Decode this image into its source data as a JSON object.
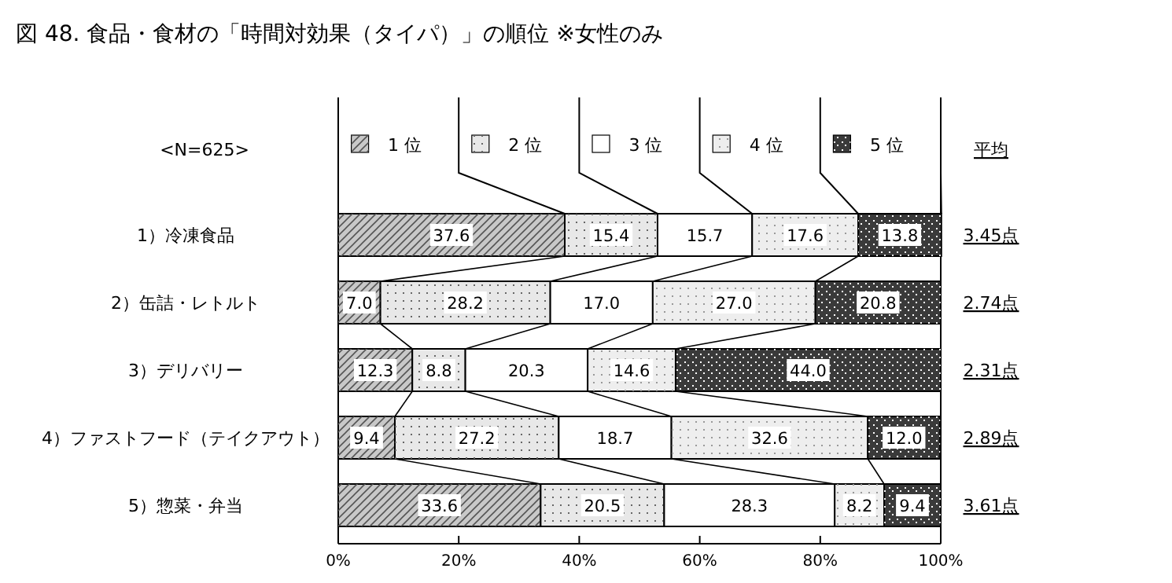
{
  "chart_data": {
    "type": "bar",
    "orientation": "horizontal",
    "stacked": true,
    "legend": "top",
    "title": "図 48. 食品・食材の「時間対効果（タイパ）」の順位 ※女性のみ",
    "categories": [
      "1）冷凍食品",
      "2）缶詰・レトルト",
      "3）デリバリー",
      "4）ファストフード（テイクアウト）",
      "5）惣菜・弁当"
    ],
    "series": [
      {
        "name": "1 位",
        "color": "#c8c8c8",
        "values": [
          37.6,
          7.0,
          12.3,
          9.4,
          33.6
        ],
        "value_labels": [
          "37.6",
          "7.0",
          "12.3",
          "9.4",
          "33.6"
        ]
      },
      {
        "name": "2 位",
        "color": "#e8e8e8",
        "values": [
          15.4,
          28.2,
          8.8,
          27.2,
          20.5
        ],
        "value_labels": [
          "15.4",
          "28.2",
          "8.8",
          "27.2",
          "20.5"
        ]
      },
      {
        "name": "3 位",
        "color": "#ffffff",
        "values": [
          15.7,
          17.0,
          20.3,
          18.7,
          28.3
        ],
        "value_labels": [
          "15.7",
          "17.0",
          "20.3",
          "18.7",
          "28.3"
        ]
      },
      {
        "name": "4 位",
        "color": "#eeeeee",
        "values": [
          17.6,
          27.0,
          14.6,
          32.6,
          8.2
        ],
        "value_labels": [
          "17.6",
          "27.0",
          "14.6",
          "32.6",
          "8.2"
        ]
      },
      {
        "name": "5 位",
        "color": "#3a3a3a",
        "values": [
          13.8,
          20.8,
          44.0,
          12.0,
          9.4
        ],
        "value_labels": [
          "13.8",
          "20.8",
          "44.0",
          "12.0",
          "9.4"
        ]
      }
    ],
    "xlim": [
      0,
      100
    ],
    "xticks": [
      {
        "value": 0,
        "label": "0%"
      },
      {
        "value": 20,
        "label": "20%"
      },
      {
        "value": 40,
        "label": "40%"
      },
      {
        "value": 60,
        "label": "60%"
      },
      {
        "value": 80,
        "label": "80%"
      },
      {
        "value": 100,
        "label": "100%"
      }
    ],
    "annotations": [
      "<N=625>",
      "平均",
      "3.45点",
      "2.74点",
      "2.31点",
      "2.89点",
      "3.61点"
    ]
  }
}
